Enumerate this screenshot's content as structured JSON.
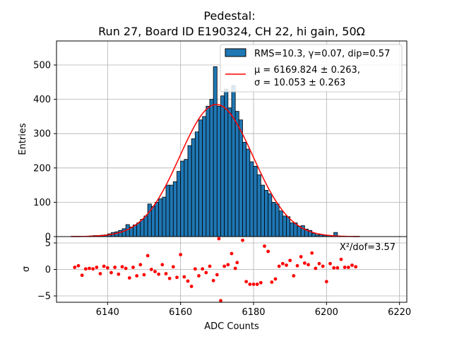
{
  "chart_data": [
    {
      "type": "bar",
      "role": "histogram",
      "title_line1": "Pedestal:",
      "title_line2": "Run 27, Board ID E190324, CH 22, hi gain, 50Ω",
      "ylabel": "Entries",
      "xlabel": "ADC Counts",
      "xlim": [
        6126,
        6222
      ],
      "ylim": [
        0,
        570
      ],
      "xticks": [
        6140,
        6160,
        6180,
        6200,
        6220
      ],
      "yticks": [
        0,
        100,
        200,
        300,
        400,
        500
      ],
      "grid": true,
      "legend_position": "top-right",
      "bin_start": 6130,
      "bin_width": 1,
      "values": [
        1,
        1,
        1,
        1,
        1,
        2,
        3,
        3,
        4,
        5,
        8,
        12,
        14,
        18,
        23,
        35,
        28,
        34,
        40,
        50,
        60,
        95,
        88,
        100,
        110,
        115,
        150,
        150,
        160,
        190,
        220,
        225,
        265,
        285,
        305,
        340,
        350,
        380,
        400,
        495,
        380,
        410,
        430,
        375,
        440,
        365,
        340,
        275,
        255,
        218,
        205,
        180,
        150,
        135,
        125,
        100,
        95,
        75,
        60,
        58,
        40,
        40,
        30,
        32,
        22,
        18,
        10,
        5,
        6,
        4,
        3,
        2,
        12,
        1,
        1,
        1,
        1,
        1,
        1
      ],
      "series": [
        {
          "name": "RMS=10.3, γ=0.07, dip=0.57",
          "kind": "histogram",
          "color": "#1f77b4",
          "edgecolor": "#000000"
        },
        {
          "name_line1": "μ = 6169.824 ± 0.263,",
          "name_line2": "σ = 10.053 ± 0.263",
          "kind": "gaussian-fit",
          "color": "#ff0000",
          "mu": 6169.824,
          "sigma": 10.053,
          "amplitude": 385
        }
      ]
    },
    {
      "type": "scatter",
      "role": "residuals",
      "ylabel": "σ",
      "xlabel": "ADC Counts",
      "xlim": [
        6126,
        6222
      ],
      "ylim": [
        -6.2,
        6.2
      ],
      "yticks": [
        -5,
        0,
        5
      ],
      "grid": true,
      "color": "#ff0000",
      "annotation": "X²/dof=3.57",
      "points": [
        [
          6131,
          0.4
        ],
        [
          6132,
          0.7
        ],
        [
          6133,
          -1.1
        ],
        [
          6134,
          0.1
        ],
        [
          6135,
          0.2
        ],
        [
          6136,
          0.1
        ],
        [
          6137,
          0.4
        ],
        [
          6138,
          -0.8
        ],
        [
          6139,
          0.6
        ],
        [
          6140,
          0.3
        ],
        [
          6141,
          -0.6
        ],
        [
          6142,
          0.4
        ],
        [
          6143,
          -0.9
        ],
        [
          6144,
          0.5
        ],
        [
          6145,
          0.2
        ],
        [
          6146,
          -1.6
        ],
        [
          6147,
          0.4
        ],
        [
          6148,
          -1.2
        ],
        [
          6149,
          0.9
        ],
        [
          6150,
          -1.0
        ],
        [
          6151,
          2.6
        ],
        [
          6152,
          0.0
        ],
        [
          6153,
          -0.4
        ],
        [
          6154,
          -0.9
        ],
        [
          6155,
          0.9
        ],
        [
          6156,
          -0.8
        ],
        [
          6157,
          -1.7
        ],
        [
          6158,
          0.5
        ],
        [
          6159,
          -1.5
        ],
        [
          6160,
          2.8
        ],
        [
          6161,
          -1.4
        ],
        [
          6162,
          -2.2
        ],
        [
          6163,
          -3.2
        ],
        [
          6164,
          0.1
        ],
        [
          6165,
          -1.2
        ],
        [
          6166,
          0.1
        ],
        [
          6167,
          -0.6
        ],
        [
          6168,
          0.6
        ],
        [
          6169,
          -2.1
        ],
        [
          6170,
          -1.0
        ],
        [
          6170.5,
          5.8
        ],
        [
          6171,
          -5.9
        ],
        [
          6172,
          0.6
        ],
        [
          6173,
          0.9
        ],
        [
          6174,
          3.0
        ],
        [
          6175,
          0.2
        ],
        [
          6175.5,
          1.3
        ],
        [
          6177,
          5.5
        ],
        [
          6178,
          -2.3
        ],
        [
          6179,
          -2.8
        ],
        [
          6180,
          -2.8
        ],
        [
          6181,
          -2.8
        ],
        [
          6182,
          -2.5
        ],
        [
          6183,
          4.4
        ],
        [
          6184,
          3.4
        ],
        [
          6185,
          -2.4
        ],
        [
          6186,
          -1.8
        ],
        [
          6187,
          0.6
        ],
        [
          6188,
          1.1
        ],
        [
          6189,
          0.8
        ],
        [
          6190,
          1.7
        ],
        [
          6191,
          -1.2
        ],
        [
          6192,
          0.7
        ],
        [
          6193,
          2.4
        ],
        [
          6194,
          1.2
        ],
        [
          6195,
          0.9
        ],
        [
          6196,
          3.1
        ],
        [
          6197,
          0.2
        ],
        [
          6198,
          1.1
        ],
        [
          6199,
          0.6
        ],
        [
          6200,
          -2.3
        ],
        [
          6201,
          1.1
        ],
        [
          6202,
          0.3
        ],
        [
          6203,
          0.3
        ],
        [
          6204,
          1.9
        ],
        [
          6205,
          0.4
        ],
        [
          6206,
          0.4
        ],
        [
          6207,
          0.8
        ],
        [
          6208,
          0.5
        ]
      ]
    }
  ]
}
